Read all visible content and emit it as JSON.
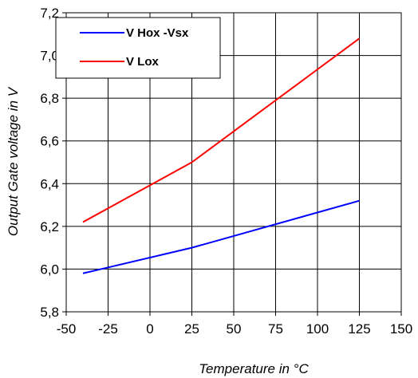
{
  "chart_data": {
    "type": "line",
    "xlabel": "Temperature in °C",
    "ylabel": "Output Gate voltage in V",
    "xlim": [
      -50,
      150
    ],
    "ylim": [
      5.8,
      7.2
    ],
    "x_ticks": [
      -50,
      -25,
      0,
      25,
      50,
      75,
      100,
      125,
      150
    ],
    "x_tick_labels": [
      "-50",
      "-25",
      "0",
      "25",
      "50",
      "75",
      "100",
      "125",
      "150"
    ],
    "y_ticks": [
      5.8,
      6.0,
      6.2,
      6.4,
      6.6,
      6.8,
      7.0,
      7.2
    ],
    "y_tick_labels": [
      "5,8",
      "6,0",
      "6,2",
      "6,4",
      "6,6",
      "6,8",
      "7,0",
      "7,2"
    ],
    "grid": true,
    "legend_position": "top-left",
    "series": [
      {
        "name": "V Hox -Vsx",
        "color": "#0000ff",
        "x": [
          -40,
          25,
          125
        ],
        "y": [
          5.98,
          6.1,
          6.32
        ]
      },
      {
        "name": "V Lox",
        "color": "#ff0000",
        "x": [
          -40,
          25,
          125
        ],
        "y": [
          6.22,
          6.5,
          7.08
        ]
      }
    ]
  }
}
